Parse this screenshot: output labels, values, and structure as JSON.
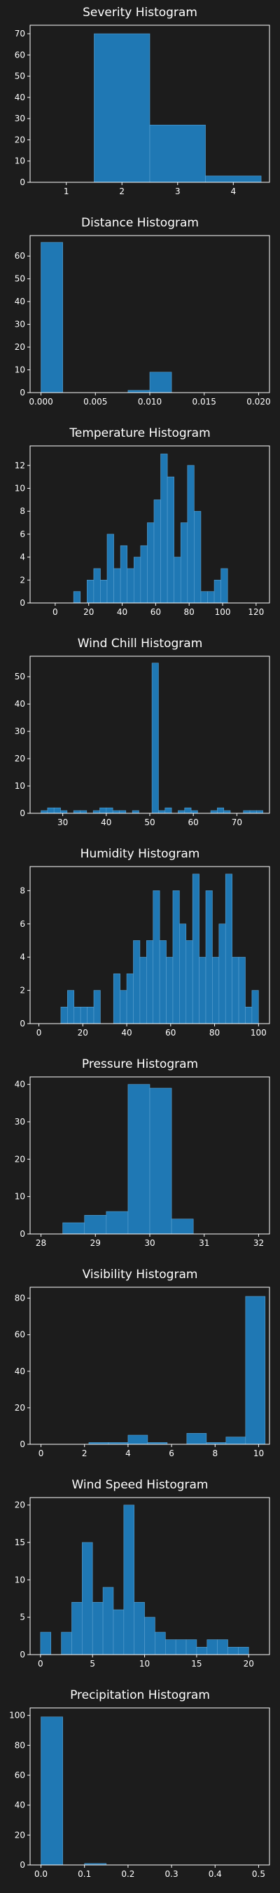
{
  "theme": {
    "background": "#1c1c1c",
    "bar_fill": "#1f78b4",
    "bar_edge": "#5aa0d0",
    "axis": "#ffffff",
    "text": "#ffffff"
  },
  "chart_data": [
    {
      "type": "bar",
      "title": "Severity Histogram",
      "xlim": [
        0.35,
        4.65
      ],
      "ylim": [
        0,
        74
      ],
      "xticks": [
        1,
        2,
        3,
        4
      ],
      "xtick_labels": [
        "1",
        "2",
        "3",
        "4"
      ],
      "yticks": [
        0,
        10,
        20,
        30,
        40,
        50,
        60,
        70
      ],
      "ytick_labels": [
        "0",
        "10",
        "20",
        "30",
        "40",
        "50",
        "60",
        "70"
      ],
      "bin_width": 1,
      "bins": [
        1.5,
        2.5,
        3.5
      ],
      "values": [
        70,
        27,
        3
      ]
    },
    {
      "type": "bar",
      "title": "Distance Histogram",
      "xlim": [
        -0.001,
        0.021
      ],
      "ylim": [
        0,
        69
      ],
      "xticks": [
        0,
        0.005,
        0.01,
        0.015,
        0.02
      ],
      "xtick_labels": [
        "0.000",
        "0.005",
        "0.010",
        "0.015",
        "0.020"
      ],
      "yticks": [
        0,
        10,
        20,
        30,
        40,
        50,
        60
      ],
      "ytick_labels": [
        "0",
        "10",
        "20",
        "30",
        "40",
        "50",
        "60"
      ],
      "bin_width": 0.002,
      "bins": [
        0,
        0.008,
        0.01
      ],
      "values": [
        66,
        1,
        9
      ]
    },
    {
      "type": "bar",
      "title": "Temperature Histogram",
      "xlim": [
        -15,
        128
      ],
      "ylim": [
        0,
        13.7
      ],
      "xticks": [
        0,
        20,
        40,
        60,
        80,
        100,
        120
      ],
      "xtick_labels": [
        "0",
        "20",
        "40",
        "60",
        "80",
        "100",
        "120"
      ],
      "yticks": [
        0,
        2,
        4,
        6,
        8,
        10,
        12
      ],
      "ytick_labels": [
        "0",
        "2",
        "4",
        "6",
        "8",
        "10",
        "12"
      ],
      "bin_width": 4,
      "bins": [
        11,
        15,
        19,
        23,
        27,
        31,
        35,
        39,
        43,
        47,
        51,
        55,
        59,
        63,
        67,
        71,
        75,
        79,
        83,
        87,
        91,
        95,
        99
      ],
      "values": [
        1,
        0,
        2,
        3,
        2,
        6,
        3,
        5,
        3,
        4,
        5,
        7,
        9,
        13,
        11,
        4,
        7,
        12,
        8,
        1,
        1,
        2,
        3
      ]
    },
    {
      "type": "bar",
      "title": "Wind Chill Histogram",
      "xlim": [
        22.5,
        77.5
      ],
      "ylim": [
        0,
        57.5
      ],
      "xticks": [
        30,
        40,
        50,
        60,
        70
      ],
      "xtick_labels": [
        "30",
        "40",
        "50",
        "60",
        "70"
      ],
      "yticks": [
        0,
        10,
        20,
        30,
        40,
        50
      ],
      "ytick_labels": [
        "0",
        "10",
        "20",
        "30",
        "40",
        "50"
      ],
      "bin_width": 1.5,
      "bins": [
        25,
        26.5,
        28,
        29.5,
        32.5,
        34,
        37,
        38.5,
        40,
        41.5,
        43,
        46,
        50.5,
        52,
        53.5,
        56.5,
        58,
        59.5,
        64,
        65.5,
        67,
        71.5,
        73,
        74.5
      ],
      "values": [
        1,
        2,
        2,
        1,
        1,
        1,
        1,
        2,
        2,
        1,
        1,
        1,
        55,
        1,
        2,
        1,
        2,
        1,
        1,
        2,
        1,
        1,
        1,
        1
      ]
    },
    {
      "type": "bar",
      "title": "Humidity Histogram",
      "xlim": [
        -4,
        105
      ],
      "ylim": [
        0,
        9.45
      ],
      "xticks": [
        0,
        20,
        40,
        60,
        80,
        100
      ],
      "xtick_labels": [
        "0",
        "20",
        "40",
        "60",
        "80",
        "100"
      ],
      "yticks": [
        0,
        2,
        4,
        6,
        8
      ],
      "ytick_labels": [
        "0",
        "2",
        "4",
        "6",
        "8"
      ],
      "bin_width": 3,
      "bins": [
        10,
        13,
        16,
        19,
        22,
        25,
        28,
        34,
        37,
        40,
        43,
        46,
        49,
        52,
        55,
        58,
        61,
        64,
        67,
        70,
        73,
        76,
        79,
        82,
        85,
        88,
        91,
        94,
        97
      ],
      "values": [
        1,
        2,
        1,
        1,
        1,
        2,
        0,
        3,
        2,
        3,
        5,
        4,
        5,
        8,
        5,
        4,
        8,
        6,
        5,
        9,
        4,
        8,
        4,
        6,
        9,
        4,
        4,
        1,
        2
      ]
    },
    {
      "type": "bar",
      "title": "Pressure Histogram",
      "xlim": [
        27.8,
        32.2
      ],
      "ylim": [
        0,
        42
      ],
      "xticks": [
        28,
        29,
        30,
        31,
        32
      ],
      "xtick_labels": [
        "28",
        "29",
        "30",
        "31",
        "32"
      ],
      "yticks": [
        0,
        10,
        20,
        30,
        40
      ],
      "ytick_labels": [
        "0",
        "10",
        "20",
        "30",
        "40"
      ],
      "bin_width": 0.4,
      "bins": [
        28.4,
        28.8,
        29.2,
        29.6,
        30.0,
        30.4
      ],
      "values": [
        3,
        5,
        6,
        40,
        39,
        4
      ]
    },
    {
      "type": "bar",
      "title": "Visibility Histogram",
      "xlim": [
        -0.5,
        10.5
      ],
      "ylim": [
        0,
        86
      ],
      "xticks": [
        0,
        2,
        4,
        6,
        8,
        10
      ],
      "xtick_labels": [
        "0",
        "2",
        "4",
        "6",
        "8",
        "10"
      ],
      "yticks": [
        0,
        20,
        40,
        60,
        80
      ],
      "ytick_labels": [
        "0",
        "20",
        "40",
        "60",
        "80"
      ],
      "bin_width": 0.9,
      "bins": [
        2.2,
        3.1,
        4.0,
        4.9,
        5.8,
        6.7,
        7.6,
        8.5,
        9.4
      ],
      "values": [
        1,
        1,
        5,
        1,
        0,
        6,
        1,
        4,
        81
      ]
    },
    {
      "type": "bar",
      "title": "Wind Speed Histogram",
      "xlim": [
        -1,
        22
      ],
      "ylim": [
        0,
        21
      ],
      "xticks": [
        0,
        5,
        10,
        15,
        20
      ],
      "xtick_labels": [
        "0",
        "5",
        "10",
        "15",
        "20"
      ],
      "yticks": [
        0,
        5,
        10,
        15,
        20
      ],
      "ytick_labels": [
        "0",
        "5",
        "10",
        "15",
        "20"
      ],
      "bin_width": 1,
      "bins": [
        0,
        1,
        2,
        3,
        4,
        5,
        6,
        7,
        8,
        9,
        10,
        11,
        12,
        13,
        14,
        15,
        16,
        17,
        18,
        19,
        20
      ],
      "values": [
        3,
        0,
        3,
        7,
        15,
        7,
        9,
        6,
        20,
        7,
        5,
        3,
        2,
        2,
        2,
        1,
        2,
        2,
        1,
        1,
        0
      ]
    },
    {
      "type": "bar",
      "title": "Precipitation Histogram",
      "xlim": [
        -0.025,
        0.525
      ],
      "ylim": [
        0,
        105
      ],
      "xticks": [
        0,
        0.1,
        0.2,
        0.3,
        0.4,
        0.5
      ],
      "xtick_labels": [
        "0.0",
        "0.1",
        "0.2",
        "0.3",
        "0.4",
        "0.5"
      ],
      "yticks": [
        0,
        20,
        40,
        60,
        80,
        100
      ],
      "ytick_labels": [
        "0",
        "20",
        "40",
        "60",
        "80",
        "100"
      ],
      "bin_width": 0.05,
      "bins": [
        0,
        0.1
      ],
      "values": [
        99,
        1
      ]
    }
  ]
}
